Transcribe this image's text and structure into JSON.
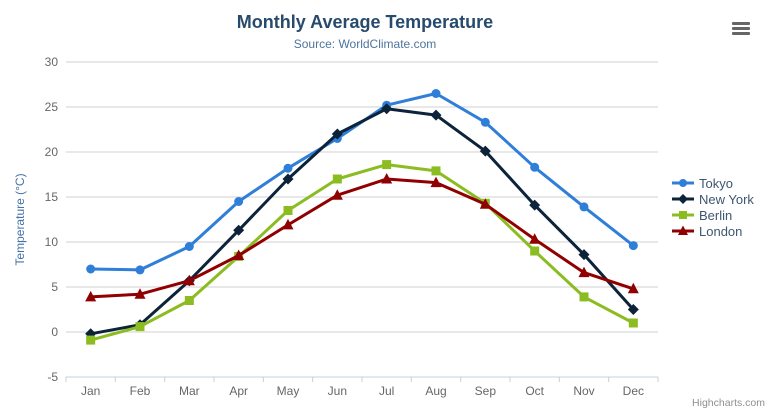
{
  "credits": {
    "label": "Highcharts.com"
  },
  "chart_data": {
    "type": "line",
    "title": "Monthly Average Temperature",
    "subtitle": "Source: WorldClimate.com",
    "categories": [
      "Jan",
      "Feb",
      "Mar",
      "Apr",
      "May",
      "Jun",
      "Jul",
      "Aug",
      "Sep",
      "Oct",
      "Nov",
      "Dec"
    ],
    "series": [
      {
        "name": "Tokyo",
        "color": "#2f7ed8",
        "marker": "circle",
        "values": [
          7.0,
          6.9,
          9.5,
          14.5,
          18.2,
          21.5,
          25.2,
          26.5,
          23.3,
          18.3,
          13.9,
          9.6
        ]
      },
      {
        "name": "New York",
        "color": "#0d233a",
        "marker": "diamond",
        "values": [
          -0.2,
          0.8,
          5.7,
          11.3,
          17.0,
          22.0,
          24.8,
          24.1,
          20.1,
          14.1,
          8.6,
          2.5
        ]
      },
      {
        "name": "Berlin",
        "color": "#8bbc21",
        "marker": "square",
        "values": [
          -0.9,
          0.6,
          3.5,
          8.4,
          13.5,
          17.0,
          18.6,
          17.9,
          14.3,
          9.0,
          3.9,
          1.0
        ]
      },
      {
        "name": "London",
        "color": "#910000",
        "marker": "triangle",
        "values": [
          3.9,
          4.2,
          5.7,
          8.5,
          11.9,
          15.2,
          17.0,
          16.6,
          14.2,
          10.3,
          6.6,
          4.8
        ]
      }
    ],
    "xlabel": "",
    "ylabel": "Temperature (°C)",
    "ylim": [
      -5,
      30
    ],
    "ytick_step": 5,
    "grid": true,
    "legend_position": "right-middle",
    "theme": {
      "background": "#ffffff",
      "title_color": "#274b6d",
      "subtitle_color": "#4d759e",
      "axis_title_color": "#4572a7",
      "tick_label_color": "#666666",
      "grid_color": "#d0d0d0",
      "axis_line_color": "#c0d0e0",
      "legend_text_color": "#3e576f",
      "credits_color": "#909090",
      "context_button_color": "#666666"
    }
  }
}
